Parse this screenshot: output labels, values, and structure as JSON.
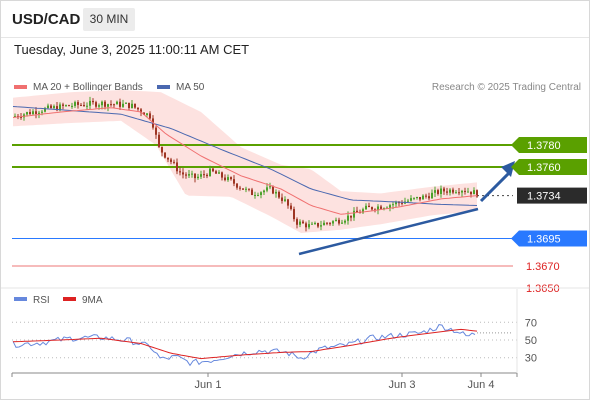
{
  "header": {
    "symbol": "USD/CAD",
    "timeframe": "30 MIN",
    "datetime": "Tuesday, June 3, 2025 11:00:11 AM CET"
  },
  "legend": {
    "ma20": "MA 20 + Bollinger Bands",
    "ma50": "MA 50",
    "credit": "Research © 2025 Trading Central"
  },
  "rsi_legend": {
    "rsi": "RSI",
    "ma": "9MA"
  },
  "colors": {
    "resistance": "#5aa000",
    "pivot": "#2979ff",
    "support": "#ee7777",
    "bollinger_fill": "#fde2e0",
    "ma20": "#f07070",
    "ma50": "#4a68b0",
    "trend_arrow": "#2c5aa0",
    "candle_up": "#4aa12a",
    "candle_down": "#9e3523",
    "rsi_line": "#6688dd",
    "rsi_ma": "#dd2222"
  },
  "chart_data": [
    {
      "type": "line",
      "title": "USD/CAD 30 MIN",
      "x_ticks": [
        "Jun 1",
        "Jun 3",
        "Jun 4"
      ],
      "ylim": [
        1.364,
        1.384
      ],
      "levels": [
        {
          "label": "1.3780",
          "value": 1.378,
          "kind": "resistance"
        },
        {
          "label": "1.3760",
          "value": 1.376,
          "kind": "resistance"
        },
        {
          "label": "1.3734",
          "value": 1.3734,
          "kind": "last"
        },
        {
          "label": "1.3695",
          "value": 1.3695,
          "kind": "pivot"
        },
        {
          "label": "1.3670",
          "value": 1.367,
          "kind": "support"
        },
        {
          "label": "1.3650",
          "value": 1.365,
          "kind": "support"
        }
      ],
      "series": [
        {
          "name": "MA 20 + Bollinger Bands"
        },
        {
          "name": "MA 50"
        }
      ]
    },
    {
      "type": "line",
      "title": "RSI",
      "ylim": [
        15,
        85
      ],
      "y_ticks": [
        "70",
        "50",
        "30"
      ],
      "series": [
        {
          "name": "RSI"
        },
        {
          "name": "9MA"
        }
      ]
    }
  ]
}
